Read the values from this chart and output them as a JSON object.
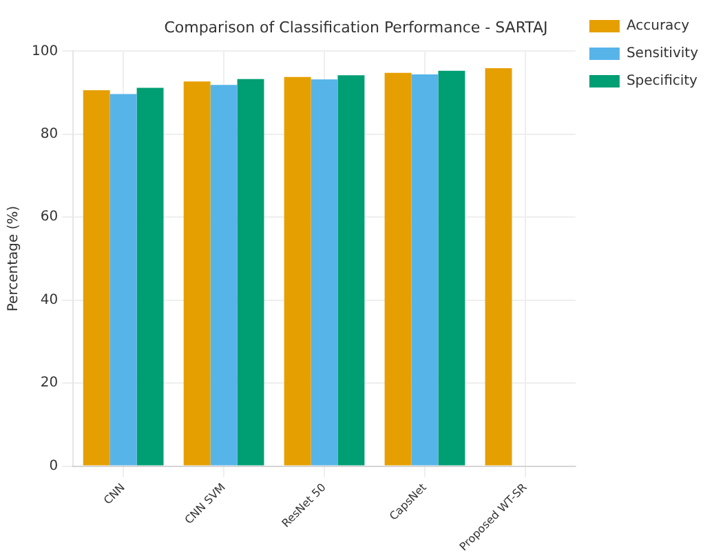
{
  "chart_data": {
    "type": "bar",
    "title": "Comparison of Classification Performance - SARTAJ",
    "ylabel": "Percentage (%)",
    "categories": [
      "CNN",
      "CNN SVM",
      "ResNet 50",
      "CapsNet",
      "Proposed WT-SR"
    ],
    "series": [
      {
        "name": "Accuracy",
        "color": "#e69f00",
        "values": [
          90.6,
          92.7,
          93.8,
          94.8,
          95.9
        ]
      },
      {
        "name": "Sensitivity",
        "color": "#56b4e9",
        "values": [
          89.7,
          91.9,
          93.2,
          94.4,
          null
        ]
      },
      {
        "name": "Specificity",
        "color": "#009e73",
        "values": [
          91.2,
          93.3,
          94.2,
          95.3,
          null
        ]
      }
    ],
    "ylim": [
      0,
      100
    ],
    "yticks": [
      0,
      20,
      40,
      60,
      80,
      100
    ],
    "grid": true,
    "legend": "right"
  }
}
